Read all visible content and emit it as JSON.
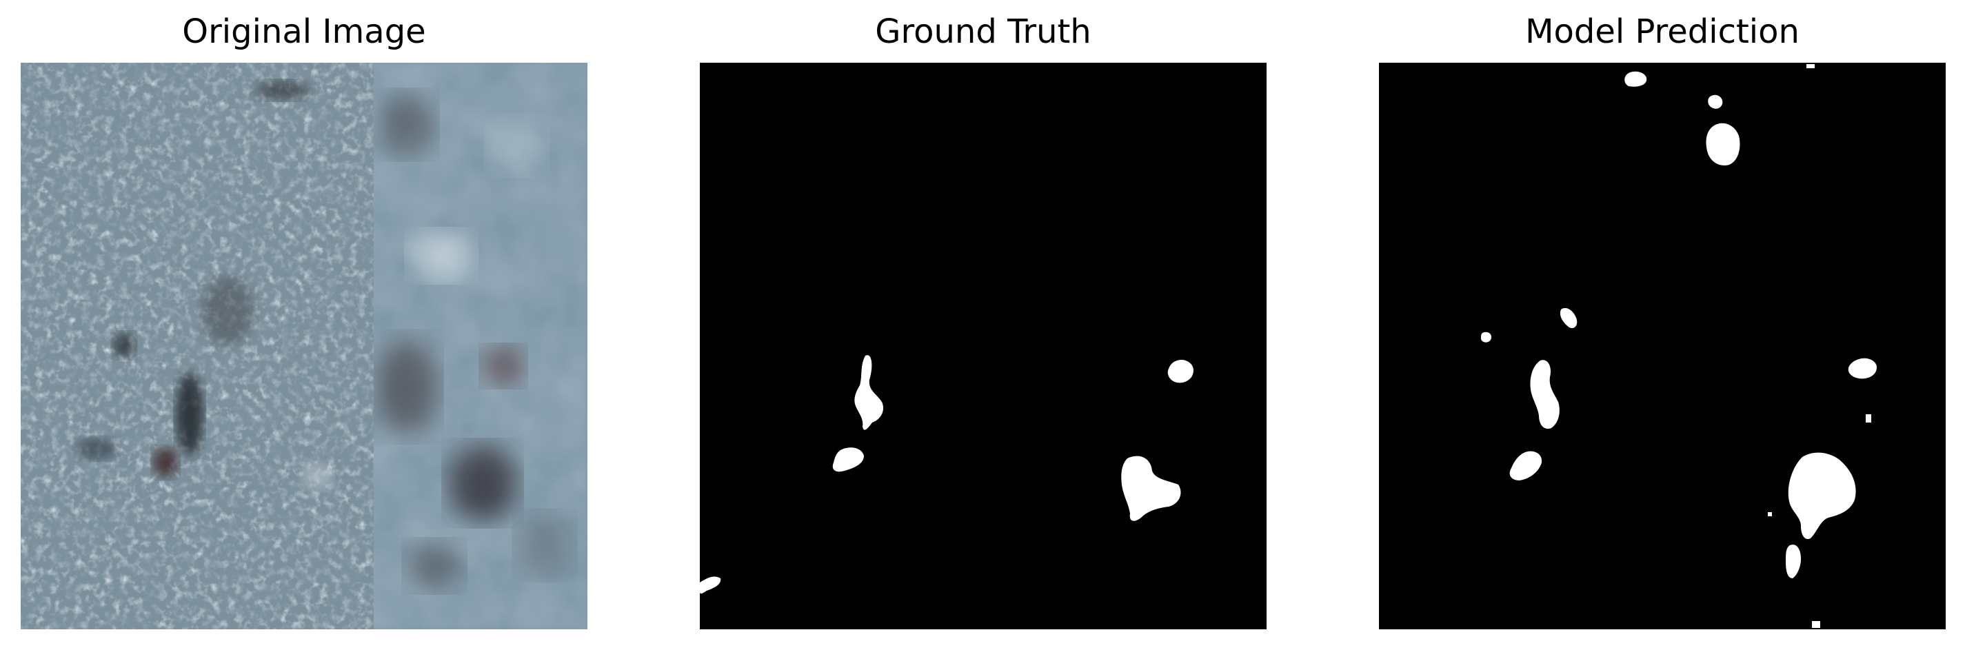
{
  "panels": [
    {
      "title": "Original Image"
    },
    {
      "title": "Ground Truth"
    },
    {
      "title": "Model Prediction"
    }
  ],
  "colors": {
    "background": "#ffffff",
    "mask_background": "#000000",
    "mask_foreground": "#ffffff",
    "tissue_base": "#5b7180",
    "tissue_dark": "#2e3f4b",
    "tissue_light": "#9cb0ba"
  }
}
